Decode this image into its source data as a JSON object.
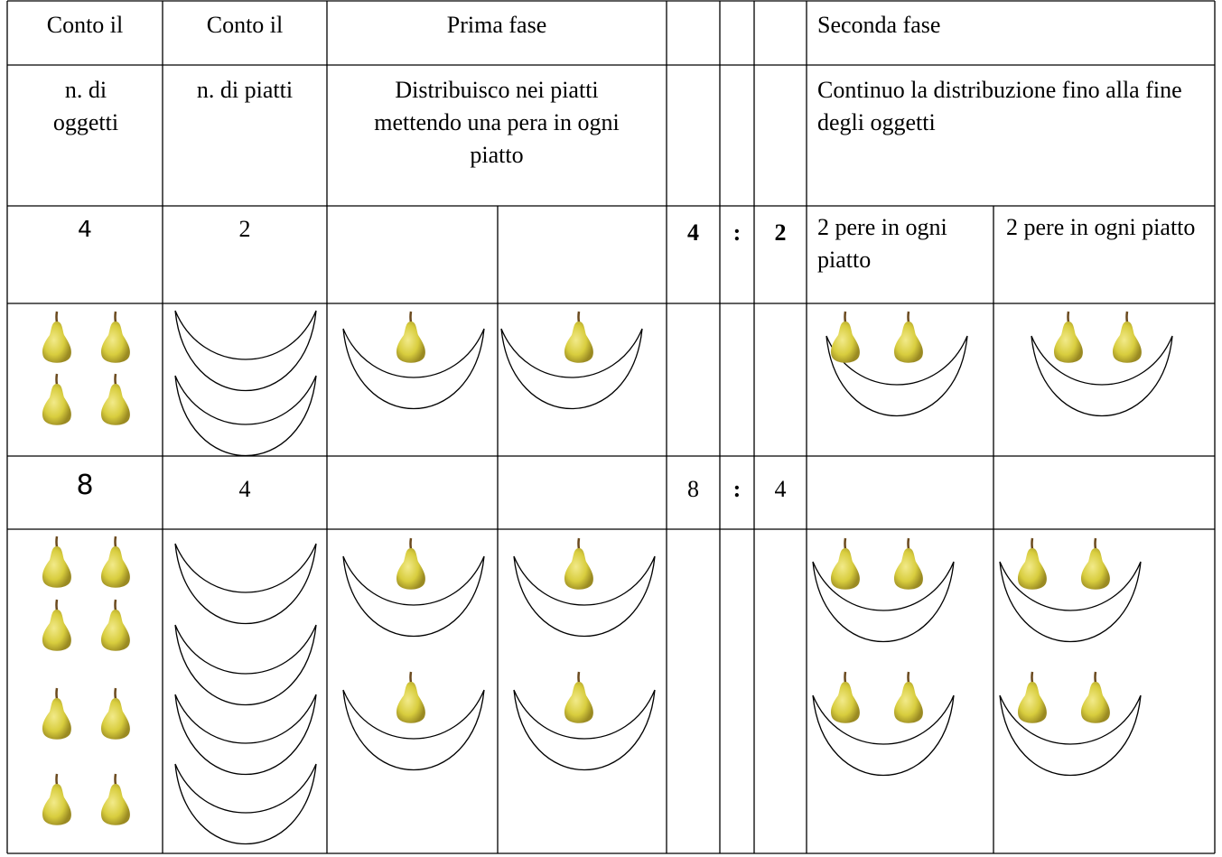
{
  "table": {
    "rows": [
      [
        "Conto il",
        "Conto il",
        "Prima fase",
        "Seconda fase"
      ],
      [
        "n. di oggetti",
        "n. di piatti",
        "Distribuisco nei piatti mettendo una pera in ogni piatto",
        "Continuo la distribuzione fino alla fine degli oggetti"
      ],
      [
        "4",
        "2",
        "4",
        ":",
        "2",
        "2 pere in ogni piatto",
        "2 pere in ogni piatto"
      ],
      [
        "8",
        "4",
        "8",
        ":",
        "4"
      ]
    ]
  }
}
